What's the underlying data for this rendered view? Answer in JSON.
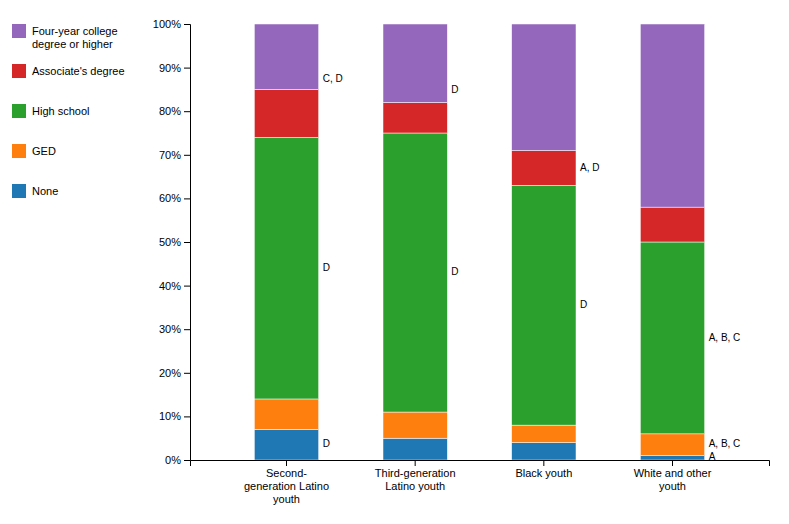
{
  "chart_data": {
    "type": "bar",
    "stacked": true,
    "categories": [
      "Second-\ngeneration Latino\nyouth",
      "Third-generation\nLatino youth",
      "Black youth",
      "White and other\nyouth"
    ],
    "series": [
      {
        "name": "None",
        "values": [
          7,
          5,
          4,
          1
        ]
      },
      {
        "name": "GED",
        "values": [
          7,
          6,
          4,
          5
        ]
      },
      {
        "name": "High school",
        "values": [
          60,
          64,
          55,
          44
        ]
      },
      {
        "name": "Associate's degree",
        "values": [
          11,
          7,
          8,
          8
        ]
      },
      {
        "name": "Four-year college\ndegree or higher",
        "values": [
          15,
          18,
          29,
          42
        ]
      }
    ],
    "ylim": [
      0,
      100
    ],
    "yticks": [
      {
        "value": 0,
        "label": "0%"
      },
      {
        "value": 10,
        "label": "10%"
      },
      {
        "value": 20,
        "label": "20%"
      },
      {
        "value": 30,
        "label": "30%"
      },
      {
        "value": 40,
        "label": "40%"
      },
      {
        "value": 50,
        "label": "50%"
      },
      {
        "value": 60,
        "label": "60%"
      },
      {
        "value": 70,
        "label": "70%"
      },
      {
        "value": 80,
        "label": "80%"
      },
      {
        "value": 90,
        "label": "90%"
      },
      {
        "value": 100,
        "label": "100%"
      }
    ],
    "annotations": [
      {
        "text": "D",
        "category": "Second-\ngeneration Latino\nyouth",
        "y": 3.5
      },
      {
        "text": "D",
        "category": "Second-\ngeneration Latino\nyouth",
        "y": 44
      },
      {
        "text": "C, D",
        "category": "Second-\ngeneration Latino\nyouth",
        "y": 87.25
      },
      {
        "text": "D",
        "category": "Third-generation\nLatino youth",
        "y": 43
      },
      {
        "text": "D",
        "category": "Third-generation\nLatino youth",
        "y": 84.7
      },
      {
        "text": "D",
        "category": "Black youth",
        "y": 35.5
      },
      {
        "text": "A, D",
        "category": "Black youth",
        "y": 67
      },
      {
        "text": "A",
        "category": "White and other\nyouth",
        "y": 0.5
      },
      {
        "text": "A, B, C",
        "category": "White and other\nyouth",
        "y": 3.5
      },
      {
        "text": "A, B, C",
        "category": "White and other\nyouth",
        "y": 28
      }
    ],
    "grid": false,
    "legend": "left"
  }
}
